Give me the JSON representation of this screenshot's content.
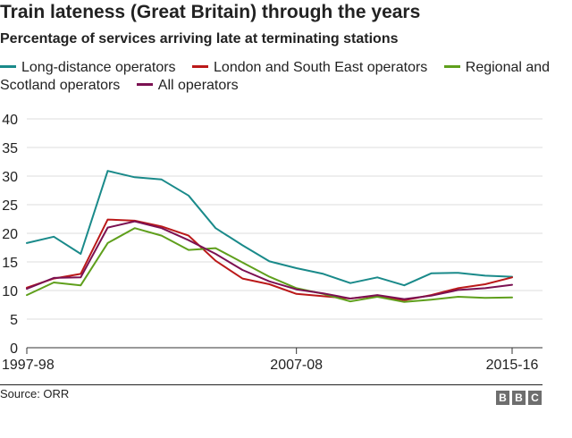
{
  "header": {
    "title": "Train lateness (Great Britain) through the years",
    "subtitle": "Percentage of services arriving late at terminating stations"
  },
  "footer": {
    "source": "Source: ORR",
    "logo_letters": [
      "B",
      "B",
      "C"
    ]
  },
  "chart_data": {
    "type": "line",
    "title": "Train lateness (Great Britain) through the years",
    "subtitle": "Percentage of services arriving late at terminating stations",
    "xlabel": "",
    "ylabel": "",
    "ylim": [
      0,
      40
    ],
    "yticks": [
      0,
      5,
      10,
      15,
      20,
      25,
      30,
      35,
      40
    ],
    "grid": true,
    "legend_position": "top",
    "x_tick_labels": [
      "1997-98",
      "2007-08",
      "2015-16"
    ],
    "x_tick_indices": [
      0,
      10,
      18
    ],
    "x_count": 19,
    "series": [
      {
        "name": "Long-distance operators",
        "color": "#1a8a8a",
        "values": [
          18.3,
          19.4,
          16.4,
          30.9,
          29.8,
          29.4,
          26.6,
          20.9,
          17.9,
          15.1,
          13.9,
          12.9,
          11.3,
          12.3,
          10.9,
          13.0,
          13.1,
          12.6,
          12.4
        ]
      },
      {
        "name": "London and South East operators",
        "color": "#bb1919",
        "values": [
          10.5,
          12.1,
          12.9,
          22.4,
          22.2,
          21.2,
          19.6,
          15.2,
          12.1,
          11.1,
          9.4,
          9.0,
          8.6,
          9.1,
          8.3,
          9.2,
          10.4,
          11.1,
          12.3
        ]
      },
      {
        "name": "Regional and Scotland operators",
        "color": "#5f9f1c",
        "values": [
          9.2,
          11.4,
          10.9,
          18.3,
          20.9,
          19.6,
          17.1,
          17.4,
          14.9,
          12.4,
          10.4,
          9.4,
          8.1,
          8.9,
          8.0,
          8.4,
          8.9,
          8.7,
          8.8
        ]
      },
      {
        "name": "All operators",
        "color": "#7b1152",
        "values": [
          10.3,
          12.2,
          12.3,
          21.0,
          22.1,
          20.9,
          18.8,
          16.4,
          13.6,
          11.6,
          10.2,
          9.5,
          8.6,
          9.2,
          8.5,
          9.1,
          10.1,
          10.4,
          11.0
        ]
      }
    ]
  }
}
